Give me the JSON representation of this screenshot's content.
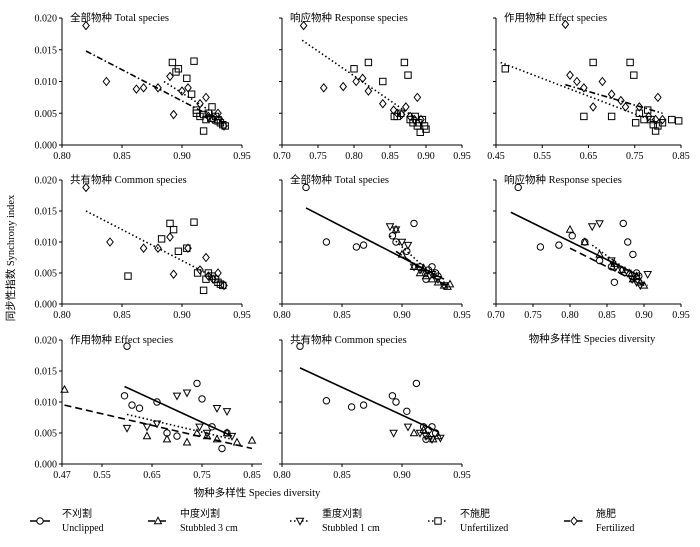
{
  "figure": {
    "ylabel": "同步性指数  Synchrony index",
    "xlabel_row2": "物种多样性  Species diversity",
    "xlabel_row3": "物种多样性  Species diversity"
  },
  "legend": [
    {
      "marker": "circle",
      "cn": "不刈割",
      "en": "Unclipped",
      "line": "solid"
    },
    {
      "marker": "triangle-up",
      "cn": "中度刈割",
      "en": "Stubbled 3 cm",
      "line": "dashed"
    },
    {
      "marker": "triangle-down",
      "cn": "重度刈割",
      "en": "Stubbled 1 cm",
      "line": "dotted-dash"
    },
    {
      "marker": "square",
      "cn": "不施肥",
      "en": "Unfertilized",
      "line": "dotted"
    },
    {
      "marker": "diamond",
      "cn": "施肥",
      "en": "Fertilized",
      "line": "dash-dot"
    }
  ],
  "chart_data": [
    {
      "type": "scatter",
      "title": "全部物种 Total species",
      "xlabel": "",
      "ylabel": "",
      "xlim": [
        0.8,
        0.95
      ],
      "ylim": [
        0.0,
        0.02
      ],
      "xticks": [
        "0.80",
        "0.85",
        "0.90",
        "0.95"
      ],
      "yticks": [
        "0.000",
        "0.005",
        "0.010",
        "0.015",
        "0.020"
      ],
      "series": [
        {
          "name": "不施肥 Unfertilized",
          "marker": "square",
          "x": [
            0.892,
            0.895,
            0.897,
            0.904,
            0.908,
            0.91,
            0.912,
            0.915,
            0.918,
            0.92,
            0.922,
            0.925,
            0.928,
            0.93,
            0.932,
            0.934,
            0.936,
            0.912,
            0.918,
            0.924,
            0.93
          ],
          "y": [
            0.013,
            0.0115,
            0.012,
            0.0105,
            0.008,
            0.0132,
            0.005,
            0.0045,
            0.0022,
            0.004,
            0.005,
            0.006,
            0.0045,
            0.004,
            0.0035,
            0.0032,
            0.003,
            0.0055,
            0.0048,
            0.0042,
            0.0038
          ]
        },
        {
          "name": "施肥 Fertilized",
          "marker": "diamond",
          "x": [
            0.82,
            0.837,
            0.862,
            0.868,
            0.88,
            0.89,
            0.893,
            0.9,
            0.905,
            0.915,
            0.92,
            0.922,
            0.926,
            0.93,
            0.935
          ],
          "y": [
            0.0188,
            0.01,
            0.0088,
            0.009,
            0.009,
            0.0108,
            0.0048,
            0.0085,
            0.009,
            0.0065,
            0.0075,
            0.0045,
            0.004,
            0.005,
            0.003
          ]
        }
      ],
      "lines": [
        {
          "style": "dotted",
          "x": [
            0.885,
            0.935
          ],
          "y": [
            0.01,
            0.004
          ]
        },
        {
          "style": "dash-dot",
          "x": [
            0.82,
            0.935
          ],
          "y": [
            0.0148,
            0.0035
          ]
        }
      ]
    },
    {
      "type": "scatter",
      "title": "响应物种 Response species",
      "xlabel": "",
      "ylabel": "",
      "xlim": [
        0.7,
        0.95
      ],
      "ylim": [
        0.0,
        0.02
      ],
      "xticks": [
        "0.70",
        "0.75",
        "0.80",
        "0.85",
        "0.90",
        "0.95"
      ],
      "yticks": [],
      "series": [
        {
          "name": "不施肥 Unfertilized",
          "marker": "square",
          "x": [
            0.8,
            0.82,
            0.84,
            0.856,
            0.86,
            0.865,
            0.87,
            0.875,
            0.878,
            0.882,
            0.885,
            0.888,
            0.89,
            0.892,
            0.895,
            0.898,
            0.9
          ],
          "y": [
            0.012,
            0.013,
            0.01,
            0.0045,
            0.0045,
            0.005,
            0.013,
            0.011,
            0.004,
            0.0035,
            0.0045,
            0.003,
            0.0035,
            0.002,
            0.004,
            0.003,
            0.0025
          ]
        },
        {
          "name": "施肥 Fertilized",
          "marker": "diamond",
          "x": [
            0.73,
            0.758,
            0.785,
            0.803,
            0.812,
            0.82,
            0.84,
            0.855,
            0.86,
            0.866,
            0.872,
            0.878,
            0.884,
            0.888,
            0.893
          ],
          "y": [
            0.0188,
            0.009,
            0.0092,
            0.01,
            0.0105,
            0.0085,
            0.0065,
            0.0055,
            0.005,
            0.0048,
            0.006,
            0.0045,
            0.004,
            0.0075,
            0.004
          ]
        }
      ],
      "lines": [
        {
          "style": "dotted",
          "x": [
            0.728,
            0.895
          ],
          "y": [
            0.0165,
            0.0035
          ]
        }
      ]
    },
    {
      "type": "scatter",
      "title": "作用物种 Effect species",
      "xlabel": "",
      "ylabel": "",
      "xlim": [
        0.45,
        0.85
      ],
      "ylim": [
        0.0,
        0.02
      ],
      "xticks": [
        "0.45",
        "0.55",
        "0.65",
        "0.75",
        "0.85"
      ],
      "yticks": [],
      "series": [
        {
          "name": "不施肥 Unfertilized",
          "marker": "square",
          "x": [
            0.47,
            0.64,
            0.66,
            0.7,
            0.74,
            0.748,
            0.752,
            0.76,
            0.77,
            0.778,
            0.785,
            0.79,
            0.795,
            0.8,
            0.81,
            0.83,
            0.845
          ],
          "y": [
            0.012,
            0.0045,
            0.013,
            0.0045,
            0.013,
            0.011,
            0.0035,
            0.005,
            0.004,
            0.0055,
            0.004,
            0.0032,
            0.0022,
            0.003,
            0.0035,
            0.004,
            0.0038
          ]
        },
        {
          "name": "施肥 Fertilized",
          "marker": "diamond",
          "x": [
            0.6,
            0.61,
            0.625,
            0.64,
            0.66,
            0.68,
            0.7,
            0.72,
            0.73,
            0.76,
            0.78,
            0.795,
            0.8,
            0.81
          ],
          "y": [
            0.019,
            0.011,
            0.01,
            0.009,
            0.006,
            0.01,
            0.008,
            0.007,
            0.006,
            0.006,
            0.0045,
            0.004,
            0.0075,
            0.004
          ]
        }
      ],
      "lines": [
        {
          "style": "dotted",
          "x": [
            0.46,
            0.8
          ],
          "y": [
            0.013,
            0.0035
          ]
        },
        {
          "style": "dash-dot",
          "x": [
            0.6,
            0.81
          ],
          "y": [
            0.0095,
            0.005
          ]
        }
      ]
    },
    {
      "type": "scatter",
      "title": "共有物种 Common species",
      "xlabel": "",
      "ylabel": "",
      "xlim": [
        0.8,
        0.95
      ],
      "ylim": [
        0.0,
        0.02
      ],
      "xticks": [
        "0.80",
        "0.85",
        "0.90",
        "0.95"
      ],
      "yticks": [
        "0.000",
        "0.005",
        "0.010",
        "0.015",
        "0.020"
      ],
      "series": [
        {
          "name": "不施肥 Unfertilized",
          "marker": "square",
          "x": [
            0.855,
            0.883,
            0.89,
            0.893,
            0.897,
            0.904,
            0.91,
            0.913,
            0.918,
            0.92,
            0.922,
            0.925,
            0.928,
            0.93,
            0.932,
            0.934
          ],
          "y": [
            0.0045,
            0.0105,
            0.013,
            0.012,
            0.0085,
            0.009,
            0.0132,
            0.005,
            0.0022,
            0.004,
            0.005,
            0.0045,
            0.004,
            0.0035,
            0.0032,
            0.003
          ]
        },
        {
          "name": "施肥 Fertilized",
          "marker": "diamond",
          "x": [
            0.82,
            0.84,
            0.868,
            0.88,
            0.89,
            0.893,
            0.905,
            0.915,
            0.92,
            0.922,
            0.926,
            0.93,
            0.935
          ],
          "y": [
            0.0188,
            0.01,
            0.009,
            0.009,
            0.0108,
            0.0048,
            0.009,
            0.0055,
            0.0075,
            0.0045,
            0.004,
            0.005,
            0.003
          ]
        }
      ],
      "lines": [
        {
          "style": "dotted",
          "x": [
            0.82,
            0.935
          ],
          "y": [
            0.015,
            0.0035
          ]
        }
      ]
    },
    {
      "type": "scatter",
      "title": "全部物种 Total species",
      "xlabel": "",
      "ylabel": "",
      "xlim": [
        0.8,
        0.95
      ],
      "ylim": [
        0.0,
        0.02
      ],
      "xticks": [
        "0.80",
        "0.85",
        "0.90",
        "0.95"
      ],
      "yticks": [],
      "series": [
        {
          "name": "不刈割 Unclipped",
          "marker": "circle",
          "x": [
            0.82,
            0.837,
            0.862,
            0.868,
            0.892,
            0.895,
            0.904,
            0.91,
            0.915,
            0.92,
            0.922,
            0.925,
            0.928,
            0.93
          ],
          "y": [
            0.0188,
            0.01,
            0.0092,
            0.0095,
            0.011,
            0.01,
            0.0085,
            0.013,
            0.006,
            0.004,
            0.0055,
            0.006,
            0.005,
            0.0045
          ]
        },
        {
          "name": "中度刈割 Stubbled 3 cm",
          "marker": "triangle-up",
          "x": [
            0.895,
            0.9,
            0.91,
            0.915,
            0.918,
            0.92,
            0.925,
            0.93,
            0.935,
            0.938,
            0.94
          ],
          "y": [
            0.012,
            0.008,
            0.006,
            0.005,
            0.0058,
            0.0045,
            0.004,
            0.0035,
            0.003,
            0.0028,
            0.0032
          ]
        },
        {
          "name": "重度刈割 Stubbled 1 cm",
          "marker": "triangle-down",
          "x": [
            0.89,
            0.895,
            0.9,
            0.905,
            0.91,
            0.915,
            0.92,
            0.925,
            0.93,
            0.935
          ],
          "y": [
            0.0125,
            0.012,
            0.01,
            0.0095,
            0.006,
            0.0055,
            0.005,
            0.0048,
            0.004,
            0.003
          ]
        }
      ],
      "lines": [
        {
          "style": "solid",
          "x": [
            0.82,
            0.935
          ],
          "y": [
            0.0155,
            0.004
          ]
        },
        {
          "style": "dashed",
          "x": [
            0.895,
            0.94
          ],
          "y": [
            0.0085,
            0.0025
          ]
        },
        {
          "style": "dotted-dash",
          "x": [
            0.89,
            0.935
          ],
          "y": [
            0.011,
            0.003
          ]
        }
      ]
    },
    {
      "type": "scatter",
      "title": "响应物种 Response species",
      "xlabel": "物种多样性  Species diversity",
      "ylabel": "",
      "xlim": [
        0.7,
        0.95
      ],
      "ylim": [
        0.0,
        0.02
      ],
      "xticks": [
        "0.70",
        "0.75",
        "0.80",
        "0.85",
        "0.90",
        "0.95"
      ],
      "yticks": [],
      "series": [
        {
          "name": "不刈割 Unclipped",
          "marker": "circle",
          "x": [
            0.73,
            0.76,
            0.785,
            0.803,
            0.82,
            0.84,
            0.856,
            0.86,
            0.872,
            0.878,
            0.885,
            0.89,
            0.893
          ],
          "y": [
            0.0188,
            0.0092,
            0.0095,
            0.011,
            0.01,
            0.007,
            0.006,
            0.0035,
            0.013,
            0.01,
            0.008,
            0.005,
            0.0045
          ]
        },
        {
          "name": "中度刈割 Stubbled 3 cm",
          "marker": "triangle-up",
          "x": [
            0.8,
            0.82,
            0.84,
            0.86,
            0.87,
            0.88,
            0.885,
            0.89,
            0.895,
            0.9
          ],
          "y": [
            0.012,
            0.01,
            0.008,
            0.0065,
            0.0055,
            0.005,
            0.004,
            0.0045,
            0.0035,
            0.003
          ]
        },
        {
          "name": "重度刈割 Stubbled 1 cm",
          "marker": "triangle-down",
          "x": [
            0.83,
            0.84,
            0.856,
            0.862,
            0.87,
            0.878,
            0.884,
            0.89,
            0.895,
            0.905
          ],
          "y": [
            0.0125,
            0.013,
            0.007,
            0.006,
            0.0055,
            0.005,
            0.004,
            0.0035,
            0.003,
            0.0048
          ]
        }
      ],
      "lines": [
        {
          "style": "solid",
          "x": [
            0.72,
            0.895
          ],
          "y": [
            0.0148,
            0.0045
          ]
        },
        {
          "style": "dashed",
          "x": [
            0.8,
            0.9
          ],
          "y": [
            0.009,
            0.003
          ]
        },
        {
          "style": "dotted-dash",
          "x": [
            0.83,
            0.905
          ],
          "y": [
            0.0095,
            0.003
          ]
        }
      ]
    },
    {
      "type": "scatter",
      "title": "作用物种 Effect species",
      "xlabel": "",
      "ylabel": "",
      "xlim": [
        0.47,
        0.87
      ],
      "ylim": [
        0.0,
        0.02
      ],
      "xticks": [
        "0.47",
        "0.55",
        "0.65",
        "0.75",
        "0.85"
      ],
      "yticks": [
        "0.000",
        "0.005",
        "0.010",
        "0.015",
        "0.020"
      ],
      "series": [
        {
          "name": "不刈割 Unclipped",
          "marker": "circle",
          "x": [
            0.595,
            0.6,
            0.61,
            0.625,
            0.66,
            0.68,
            0.7,
            0.74,
            0.75,
            0.77,
            0.79,
            0.8
          ],
          "y": [
            0.011,
            0.019,
            0.0095,
            0.009,
            0.01,
            0.005,
            0.0045,
            0.013,
            0.0105,
            0.006,
            0.0025,
            0.005
          ]
        },
        {
          "name": "中度刈割 Stubbled 3 cm",
          "marker": "triangle-up",
          "x": [
            0.475,
            0.64,
            0.68,
            0.72,
            0.74,
            0.76,
            0.78,
            0.8,
            0.82,
            0.85
          ],
          "y": [
            0.012,
            0.0045,
            0.004,
            0.0035,
            0.005,
            0.0045,
            0.004,
            0.005,
            0.0035,
            0.0038
          ]
        },
        {
          "name": "重度刈割 Stubbled 1 cm",
          "marker": "triangle-down",
          "x": [
            0.6,
            0.64,
            0.66,
            0.7,
            0.72,
            0.745,
            0.76,
            0.78,
            0.8,
            0.81
          ],
          "y": [
            0.0058,
            0.006,
            0.0065,
            0.011,
            0.0115,
            0.006,
            0.005,
            0.009,
            0.0085,
            0.0045
          ]
        }
      ],
      "lines": [
        {
          "style": "solid",
          "x": [
            0.595,
            0.81
          ],
          "y": [
            0.0125,
            0.0045
          ]
        },
        {
          "style": "dashed",
          "x": [
            0.475,
            0.85
          ],
          "y": [
            0.0095,
            0.0025
          ]
        },
        {
          "style": "dotted-dash",
          "x": [
            0.6,
            0.81
          ],
          "y": [
            0.008,
            0.004
          ]
        }
      ]
    },
    {
      "type": "scatter",
      "title": "共有物种 Common species",
      "xlabel": "",
      "ylabel": "",
      "xlim": [
        0.8,
        0.95
      ],
      "ylim": [
        0.0,
        0.02
      ],
      "xticks": [
        "0.80",
        "0.85",
        "0.90",
        "0.95"
      ],
      "yticks": [],
      "series": [
        {
          "name": "不刈割 Unclipped",
          "marker": "circle",
          "x": [
            0.815,
            0.837,
            0.858,
            0.868,
            0.892,
            0.895,
            0.904,
            0.912,
            0.918,
            0.92,
            0.922,
            0.925,
            0.928
          ],
          "y": [
            0.019,
            0.0102,
            0.0092,
            0.0095,
            0.011,
            0.01,
            0.0085,
            0.013,
            0.006,
            0.004,
            0.0055,
            0.006,
            0.005
          ]
        },
        {
          "name": "中度刈割 Stubbled 3 cm",
          "marker": "triangle-up",
          "x": [
            0.91,
            0.918,
            0.922,
            0.926,
            0.93
          ],
          "y": [
            0.005,
            0.0055,
            0.0045,
            0.004,
            0.0045
          ]
        },
        {
          "name": "重度刈割 Stubbled 1 cm",
          "marker": "triangle-down",
          "x": [
            0.893,
            0.905,
            0.915,
            0.92,
            0.925,
            0.932
          ],
          "y": [
            0.005,
            0.006,
            0.005,
            0.0045,
            0.004,
            0.0042
          ]
        }
      ],
      "lines": [
        {
          "style": "solid",
          "x": [
            0.815,
            0.93
          ],
          "y": [
            0.0155,
            0.0052
          ]
        }
      ]
    }
  ]
}
